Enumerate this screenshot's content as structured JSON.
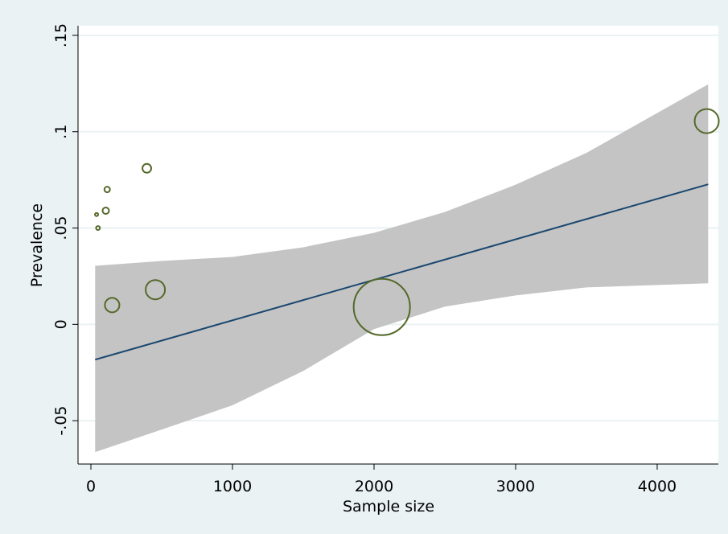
{
  "chart_data": {
    "type": "scatter",
    "x_label": "Sample size",
    "y_label": "Prevalence",
    "x": [
      40,
      50,
      105,
      115,
      395,
      150,
      455,
      2055,
      4350
    ],
    "values": [
      0.057,
      0.05,
      0.059,
      0.07,
      0.081,
      0.01,
      0.018,
      0.009,
      0.1055
    ],
    "sizes": [
      4,
      6,
      16,
      12,
      30,
      81,
      144,
      1225,
      225
    ],
    "color": "#55692a",
    "fit": {
      "x": [
        30,
        4360
      ],
      "values": [
        -0.0183,
        0.0727
      ],
      "color": "#1a476f"
    },
    "ci": {
      "x": [
        30,
        500,
        1000,
        1500,
        2000,
        2500,
        3000,
        3500,
        4360
      ],
      "upper": [
        0.0304,
        0.0329,
        0.035,
        0.04,
        0.0475,
        0.0583,
        0.0725,
        0.089,
        0.1246
      ],
      "lower": [
        -0.0663,
        -0.0546,
        -0.042,
        -0.0242,
        -0.0025,
        0.0092,
        0.015,
        0.0192,
        0.0213
      ],
      "color": "#c4c4c4"
    },
    "xlim": [
      -91,
      4432
    ],
    "ylim": [
      -0.0725,
      0.155
    ],
    "xticks": [
      0,
      1000,
      2000,
      3000,
      4000
    ],
    "yticks": [
      {
        "value": -0.05,
        "label": "-.05"
      },
      0,
      {
        "value": 0.05,
        "label": ".05"
      },
      {
        "value": 0.1,
        "label": ".1"
      },
      {
        "value": 0.15,
        "label": ".15"
      }
    ],
    "grid": true
  }
}
